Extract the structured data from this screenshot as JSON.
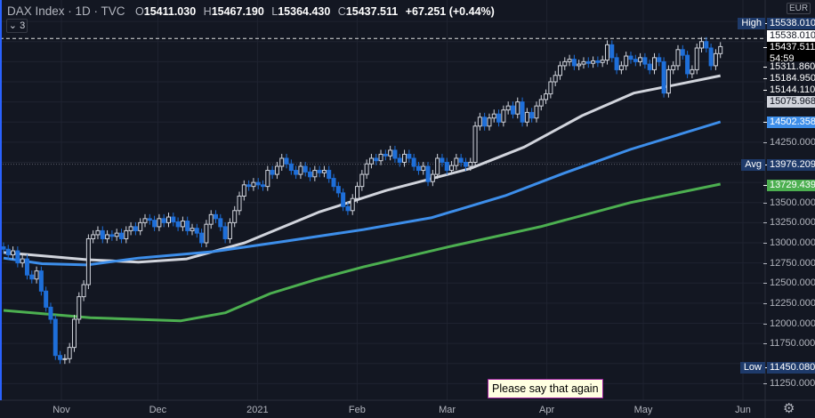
{
  "header": {
    "symbol": "DAX Index · 1D · TVC",
    "open_label": "O",
    "open": "15411.030",
    "high_label": "H",
    "high": "15467.190",
    "low_label": "L",
    "low": "15364.430",
    "close_label": "C",
    "close": "15437.511",
    "change": "+67.251 (+0.44%)",
    "indicators_toggle": "⌄ 3"
  },
  "currency": "EUR",
  "tooltip": "Please say that again",
  "colors": {
    "background": "#131722",
    "up": "#d1d4dc",
    "down": "#1e6fd9",
    "ma_white": "#d1d4dc",
    "ma_blue": "#3d8eea",
    "ma_green": "#4caf50",
    "accent": "#2962ff"
  },
  "chart_data": {
    "type": "candlestick",
    "title": "DAX Index · 1D · TVC",
    "first_date": "2020-10-14",
    "last_date": "2021-05-25",
    "ylim": [
      11030,
      16017
    ],
    "grid": true,
    "closes": [
      12920,
      12850,
      12900,
      12750,
      12800,
      12600,
      12550,
      12650,
      12400,
      12200,
      12050,
      11600,
      11550,
      11560,
      11700,
      12050,
      12330,
      12480,
      13050,
      13100,
      13150,
      13050,
      13100,
      13080,
      13120,
      13050,
      13150,
      13200,
      13150,
      13250,
      13300,
      13280,
      13200,
      13300,
      13250,
      13320,
      13260,
      13200,
      13270,
      13150,
      13180,
      13120,
      13000,
      13230,
      13350,
      13300,
      13200,
      13050,
      13250,
      13400,
      13580,
      13720,
      13700,
      13750,
      13720,
      13700,
      13900,
      13850,
      13950,
      14050,
      13980,
      13900,
      13850,
      13950,
      13880,
      13820,
      13900,
      13870,
      13900,
      13800,
      13700,
      13620,
      13450,
      13400,
      13550,
      13700,
      13850,
      13980,
      14050,
      14020,
      14100,
      14080,
      14150,
      14050,
      14000,
      14100,
      14050,
      13950,
      13900,
      13950,
      13760,
      13850,
      14050,
      14000,
      13900,
      13960,
      14050,
      14000,
      13950,
      14000,
      14450,
      14560,
      14450,
      14550,
      14600,
      14500,
      14650,
      14700,
      14600,
      14750,
      14500,
      14620,
      14550,
      14700,
      14780,
      14850,
      15000,
      15080,
      15200,
      15250,
      15280,
      15200,
      15220,
      15250,
      15230,
      15260,
      15240,
      15270,
      15460,
      15300,
      15150,
      15200,
      15320,
      15280,
      15250,
      15300,
      15220,
      15150,
      15300,
      15250,
      14860,
      15150,
      15200,
      15400,
      15330,
      15100,
      15150,
      15420,
      15500,
      15420,
      15200,
      15350,
      15437.511
    ],
    "moving_averages": [
      {
        "color": "#d1d4dc",
        "points": [
          [
            "2020-10-14",
            12880
          ],
          [
            "2020-11-09",
            12790
          ],
          [
            "2020-11-25",
            12760
          ],
          [
            "2020-12-10",
            12800
          ],
          [
            "2020-12-28",
            13000
          ],
          [
            "2021-01-20",
            13380
          ],
          [
            "2021-02-10",
            13650
          ],
          [
            "2021-03-08",
            13920
          ],
          [
            "2021-03-25",
            14190
          ],
          [
            "2021-04-12",
            14580
          ],
          [
            "2021-04-28",
            14860
          ],
          [
            "2021-05-12",
            14970
          ],
          [
            "2021-05-25",
            15075.968
          ]
        ]
      },
      {
        "color": "#3d8eea",
        "points": [
          [
            "2020-10-14",
            12810
          ],
          [
            "2020-10-26",
            12740
          ],
          [
            "2020-11-09",
            12725
          ],
          [
            "2020-11-25",
            12810
          ],
          [
            "2020-12-18",
            12890
          ],
          [
            "2021-01-08",
            13010
          ],
          [
            "2021-02-03",
            13165
          ],
          [
            "2021-02-24",
            13310
          ],
          [
            "2021-03-19",
            13585
          ],
          [
            "2021-04-06",
            13860
          ],
          [
            "2021-04-27",
            14160
          ],
          [
            "2021-05-25",
            14502.358
          ]
        ]
      },
      {
        "color": "#4caf50",
        "points": [
          [
            "2020-10-14",
            12160
          ],
          [
            "2020-11-10",
            12070
          ],
          [
            "2020-12-08",
            12030
          ],
          [
            "2020-12-22",
            12130
          ],
          [
            "2021-01-05",
            12370
          ],
          [
            "2021-01-19",
            12540
          ],
          [
            "2021-02-03",
            12700
          ],
          [
            "2021-03-02",
            12955
          ],
          [
            "2021-03-30",
            13200
          ],
          [
            "2021-04-27",
            13500
          ],
          [
            "2021-05-25",
            13729.439
          ]
        ]
      }
    ],
    "high": "15538.010",
    "low": "11450.080",
    "avg": "13976.209",
    "x_ticks": [
      {
        "label": "Nov",
        "date": "2020-11-01"
      },
      {
        "label": "Dec",
        "date": "2020-12-01"
      },
      {
        "label": "2021",
        "date": "2021-01-01"
      },
      {
        "label": "Feb",
        "date": "2021-02-01"
      },
      {
        "label": "Mar",
        "date": "2021-03-01"
      },
      {
        "label": "Apr",
        "date": "2021-04-01"
      },
      {
        "label": "May",
        "date": "2021-05-01"
      },
      {
        "label": "Jun",
        "date": "2021-06-01"
      }
    ],
    "y_ticks": [
      "14250.000",
      "13500.000",
      "13250.000",
      "13000.000",
      "12750.000",
      "12500.000",
      "12250.000",
      "12000.000",
      "11750.000",
      "11250.000"
    ],
    "price_labels": [
      {
        "tag": "High",
        "value": "15538.010",
        "bg": "#1e3a6a",
        "fg": "#ffffff"
      },
      {
        "value": "15538.010",
        "bg": "#ffffff",
        "fg": "#131722"
      },
      {
        "value": "15437.511",
        "sub": "54:59",
        "bg": "#000000",
        "fg": "#ffffff"
      },
      {
        "value": "15311.860",
        "bg": "#131722",
        "fg": "#ffffff"
      },
      {
        "value": "15184.950",
        "bg": "#131722",
        "fg": "#ffffff"
      },
      {
        "value": "15144.110",
        "bg": "#131722",
        "fg": "#ffffff"
      },
      {
        "value": "15075.968",
        "bg": "#d1d4dc",
        "fg": "#131722"
      },
      {
        "value": "14502.358",
        "bg": "#3d8eea",
        "fg": "#ffffff"
      },
      {
        "tag": "Avg",
        "value": "13976.209",
        "bg": "#1e3a6a",
        "fg": "#ffffff"
      },
      {
        "value": "13729.439",
        "bg": "#4caf50",
        "fg": "#ffffff"
      },
      {
        "tag": "Low",
        "value": "11450.080",
        "bg": "#1e3a6a",
        "fg": "#ffffff"
      }
    ]
  }
}
